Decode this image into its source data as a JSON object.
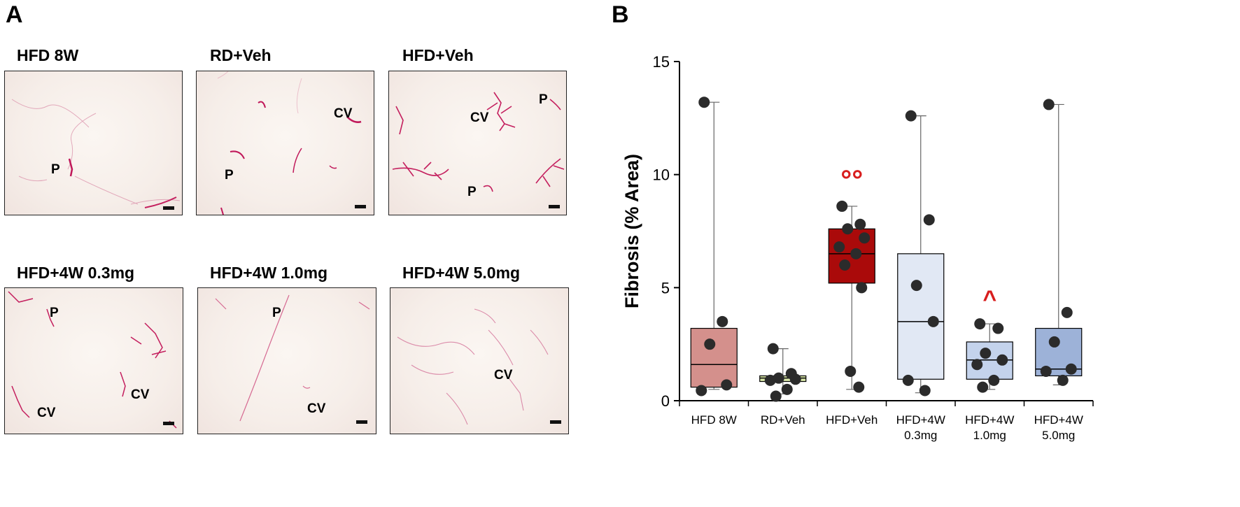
{
  "panels": {
    "a": "A",
    "b": "B"
  },
  "micrographs": [
    {
      "title": "HFD 8W",
      "labels": [
        {
          "text": "P"
        }
      ]
    },
    {
      "title": "RD+Veh",
      "labels": [
        {
          "text": "CV"
        },
        {
          "text": "P"
        }
      ]
    },
    {
      "title": "HFD+Veh",
      "labels": [
        {
          "text": "P"
        },
        {
          "text": "CV"
        },
        {
          "text": "P"
        }
      ]
    },
    {
      "title": "HFD+4W 0.3mg",
      "labels": [
        {
          "text": "P"
        },
        {
          "text": "CV"
        },
        {
          "text": "CV"
        }
      ]
    },
    {
      "title": "HFD+4W 1.0mg",
      "labels": [
        {
          "text": "P"
        },
        {
          "text": "CV"
        }
      ]
    },
    {
      "title": "HFD+4W 5.0mg",
      "labels": [
        {
          "text": "CV"
        }
      ]
    }
  ],
  "chart_data": {
    "type": "box",
    "title": "",
    "xlabel": "",
    "ylabel": "Fibrosis (% Area)",
    "ylim": [
      0,
      15
    ],
    "yticks": [
      "0",
      "5",
      "10",
      "15"
    ],
    "grid": false,
    "groups": [
      {
        "label": [
          "HFD  8W"
        ],
        "color": "#d4908c",
        "whisker_low": 0.5,
        "q1": 0.6,
        "median": 1.6,
        "q3": 3.2,
        "whisker_high": 13.2,
        "points": [
          13.2,
          3.5,
          2.5,
          0.7,
          0.45
        ],
        "annotation": ""
      },
      {
        "label": [
          "RD+Veh"
        ],
        "color": "#d8e6a8",
        "whisker_low": 0.3,
        "q1": 0.85,
        "median": 1.0,
        "q3": 1.1,
        "whisker_high": 2.3,
        "points": [
          2.3,
          1.2,
          1.0,
          0.95,
          0.9,
          0.5,
          0.2
        ],
        "annotation": ""
      },
      {
        "label": [
          "HFD+Veh"
        ],
        "color": "#aa0a0a",
        "whisker_low": 0.5,
        "q1": 5.2,
        "median": 6.5,
        "q3": 7.6,
        "whisker_high": 8.6,
        "points": [
          8.6,
          7.8,
          7.6,
          7.2,
          6.8,
          6.5,
          6.0,
          5.0,
          1.3,
          0.6
        ],
        "annotation": "°°"
      },
      {
        "label": [
          "HFD+4W",
          "0.3mg"
        ],
        "color": "#e1e8f4",
        "whisker_low": 0.35,
        "q1": 0.95,
        "median": 3.5,
        "q3": 6.5,
        "whisker_high": 12.6,
        "points": [
          12.6,
          8.0,
          5.1,
          3.5,
          0.9,
          0.45
        ],
        "annotation": ""
      },
      {
        "label": [
          "HFD+4W",
          "1.0mg"
        ],
        "color": "#c4d3ec",
        "whisker_low": 0.5,
        "q1": 0.95,
        "median": 1.8,
        "q3": 2.6,
        "whisker_high": 3.4,
        "points": [
          3.4,
          3.2,
          2.1,
          1.8,
          1.6,
          0.9,
          0.6
        ],
        "annotation": "^"
      },
      {
        "label": [
          "HFD+4W",
          "5.0mg"
        ],
        "color": "#9db2d8",
        "whisker_low": 0.7,
        "q1": 1.1,
        "median": 1.4,
        "q3": 3.2,
        "whisker_high": 13.1,
        "points": [
          13.1,
          3.9,
          2.6,
          1.4,
          1.3,
          0.9
        ],
        "annotation": ""
      }
    ]
  }
}
